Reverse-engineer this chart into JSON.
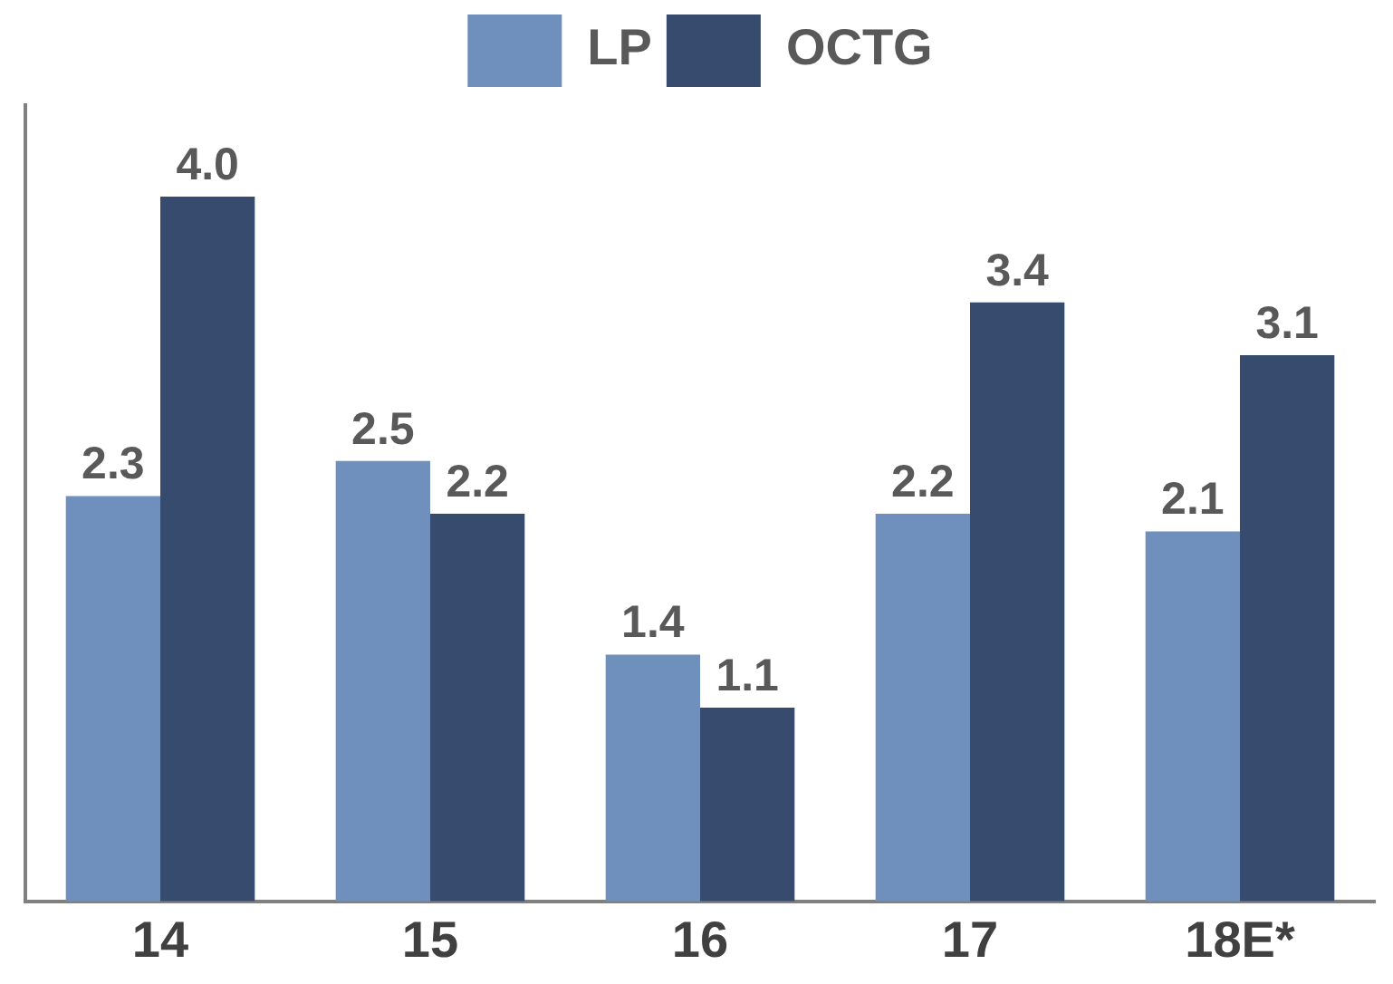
{
  "chart_data": {
    "type": "bar",
    "categories": [
      "14",
      "15",
      "16",
      "17",
      "18E*"
    ],
    "series": [
      {
        "name": "LP",
        "color": "#6f8fbd",
        "values": [
          2.3,
          2.5,
          1.4,
          2.2,
          2.1
        ],
        "value_labels": [
          "2.3",
          "2.5",
          "1.4",
          "2.2",
          "2.1"
        ]
      },
      {
        "name": "OCTG",
        "color": "#364b6e",
        "values": [
          4.0,
          2.2,
          1.1,
          3.4,
          3.1
        ],
        "value_labels": [
          "4.0",
          "2.2",
          "1.1",
          "3.4",
          "3.1"
        ]
      }
    ],
    "legend": "top",
    "grid": false
  }
}
